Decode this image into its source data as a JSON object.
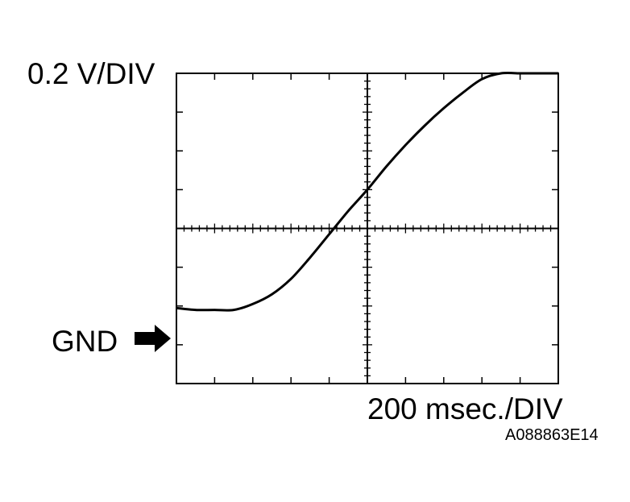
{
  "labels": {
    "vertical_scale": "0.2 V/DIV",
    "horizontal_scale": "200 msec./DIV",
    "ground_marker": "GND",
    "figure_code": "A088863E14"
  },
  "icons": {
    "ground_arrow": "right-arrow-icon"
  },
  "colors": {
    "ink": "#000000",
    "background": "#ffffff"
  },
  "chart_data": {
    "type": "line",
    "x_divisions": 10,
    "y_divisions": 8,
    "x_unit": "msec",
    "y_unit": "V",
    "x_per_div": 200,
    "y_per_div": 0.2,
    "xlim": [
      0,
      2000
    ],
    "ylim": [
      -0.2,
      1.4
    ],
    "ground_level_v": 0,
    "grid": "center crosshair with minor ticks",
    "series": [
      {
        "x": [
          0,
          100,
          200,
          300,
          400,
          500,
          600,
          700,
          800,
          900,
          1000,
          1100,
          1200,
          1300,
          1400,
          1500,
          1600,
          1700,
          1800,
          1900,
          2000
        ],
        "y": [
          0.19,
          0.18,
          0.18,
          0.18,
          0.21,
          0.26,
          0.34,
          0.45,
          0.57,
          0.69,
          0.8,
          0.92,
          1.03,
          1.13,
          1.22,
          1.3,
          1.37,
          1.4,
          1.4,
          1.4,
          1.4
        ]
      }
    ]
  }
}
